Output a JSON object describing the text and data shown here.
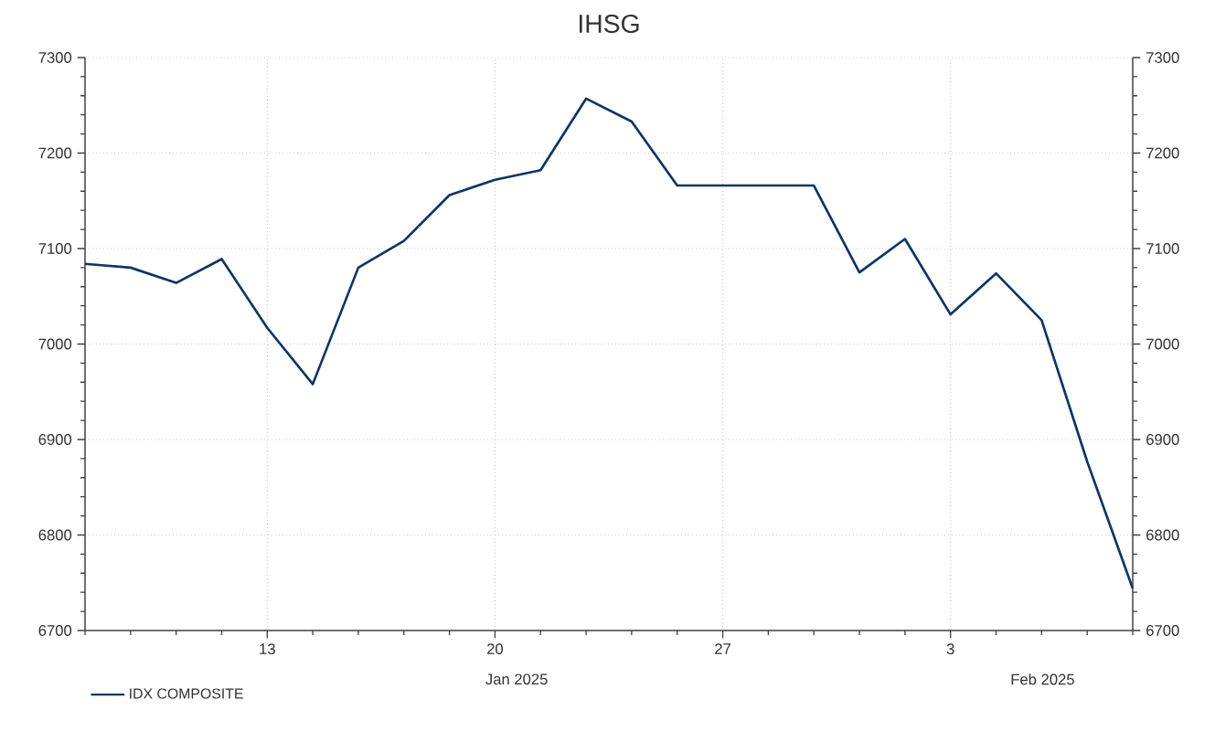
{
  "chart_data": {
    "type": "line",
    "title": "IHSG",
    "categories": [
      null,
      null,
      null,
      null,
      "13",
      null,
      null,
      null,
      null,
      "20",
      null,
      null,
      null,
      null,
      "27",
      null,
      null,
      null,
      null,
      "3",
      null,
      null,
      null,
      null
    ],
    "series": [
      {
        "name": "IDX COMPOSITE",
        "color": "#0d3468",
        "values": [
          7084,
          7080,
          7064,
          7089,
          7017,
          6958,
          7080,
          7108,
          7156,
          7172,
          7182,
          7257,
          7233,
          7166,
          7166,
          7166,
          7166,
          7075,
          7110,
          7031,
          7074,
          7025,
          6877,
          6744
        ]
      }
    ],
    "ylim": [
      6700,
      7300
    ],
    "yticks": [
      6700,
      6800,
      6900,
      7000,
      7100,
      7200,
      7300
    ],
    "y2lim": [
      6700,
      7300
    ],
    "y2ticks": [
      6700,
      6800,
      6900,
      7000,
      7100,
      7200,
      7300
    ],
    "annotations": [
      "Jan 2025",
      "Feb 2025"
    ],
    "grid": true,
    "legend": "bottom left",
    "marker": "none",
    "line_style": "solid"
  }
}
